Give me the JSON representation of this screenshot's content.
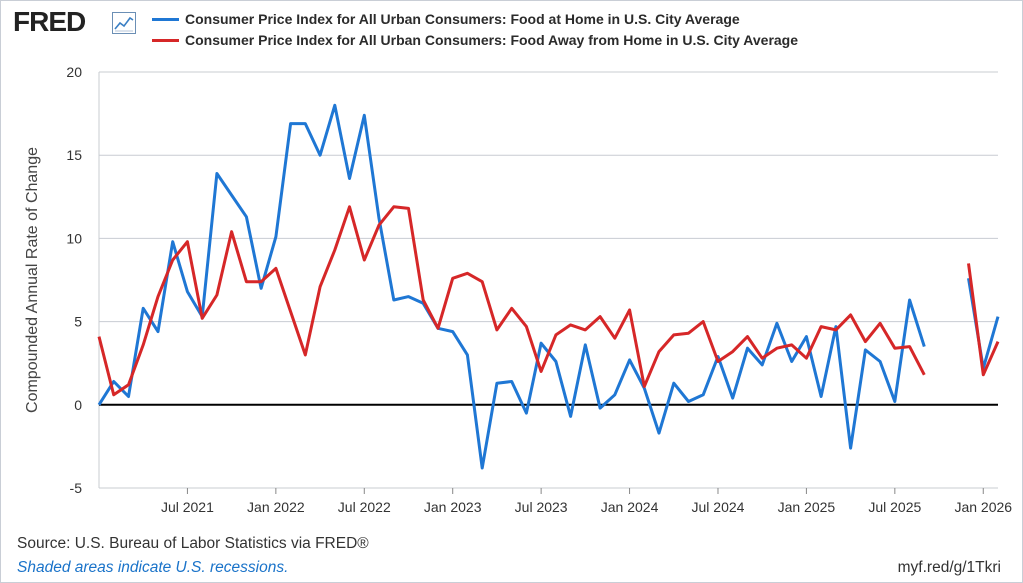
{
  "header": {
    "logo_text": "FRED",
    "logo_icon": "trend-line-icon"
  },
  "colors": {
    "series1": "#1f77d4",
    "series2": "#d62728",
    "zero_line": "#000000",
    "grid": "#c8ccd2"
  },
  "footer": {
    "source": "Source: U.S. Bureau of Labor Statistics via FRED®",
    "recession_note": "Shaded areas indicate U.S. recessions.",
    "short_url": "myf.red/g/1Tkri"
  },
  "chart_data": {
    "type": "line",
    "ylabel": "Compounded Annual Rate of Change",
    "ylim": [
      -5,
      20
    ],
    "yticks": [
      -5,
      0,
      5,
      10,
      15,
      20
    ],
    "grid": true,
    "legend_position": "top",
    "x_start": "2021-01",
    "x_end": "2026-02",
    "xticks": [
      {
        "date": "2021-07",
        "label": "Jul 2021"
      },
      {
        "date": "2022-01",
        "label": "Jan 2022"
      },
      {
        "date": "2022-07",
        "label": "Jul 2022"
      },
      {
        "date": "2023-01",
        "label": "Jan 2023"
      },
      {
        "date": "2023-07",
        "label": "Jul 2023"
      },
      {
        "date": "2024-01",
        "label": "Jan 2024"
      },
      {
        "date": "2024-07",
        "label": "Jul 2024"
      },
      {
        "date": "2025-01",
        "label": "Jan 2025"
      },
      {
        "date": "2025-07",
        "label": "Jul 2025"
      },
      {
        "date": "2026-01",
        "label": "Jan 2026"
      }
    ],
    "series": [
      {
        "name": "Consumer Price Index for All Urban Consumers: Food at Home in U.S. City Average",
        "color": "#1f77d4",
        "points": [
          [
            "2021-01",
            0.0
          ],
          [
            "2021-02",
            1.4
          ],
          [
            "2021-03",
            0.5
          ],
          [
            "2021-04",
            5.8
          ],
          [
            "2021-05",
            4.4
          ],
          [
            "2021-06",
            9.8
          ],
          [
            "2021-07",
            6.8
          ],
          [
            "2021-08",
            5.3
          ],
          [
            "2021-09",
            13.9
          ],
          [
            "2021-10",
            12.6
          ],
          [
            "2021-11",
            11.3
          ],
          [
            "2021-12",
            7.0
          ],
          [
            "2022-01",
            10.1
          ],
          [
            "2022-02",
            16.9
          ],
          [
            "2022-03",
            16.9
          ],
          [
            "2022-04",
            15.0
          ],
          [
            "2022-05",
            18.0
          ],
          [
            "2022-06",
            13.6
          ],
          [
            "2022-07",
            17.4
          ],
          [
            "2022-08",
            11.2
          ],
          [
            "2022-09",
            6.3
          ],
          [
            "2022-10",
            6.5
          ],
          [
            "2022-11",
            6.1
          ],
          [
            "2022-12",
            4.6
          ],
          [
            "2023-01",
            4.4
          ],
          [
            "2023-02",
            3.0
          ],
          [
            "2023-03",
            -3.8
          ],
          [
            "2023-04",
            1.3
          ],
          [
            "2023-05",
            1.4
          ],
          [
            "2023-06",
            -0.5
          ],
          [
            "2023-07",
            3.7
          ],
          [
            "2023-08",
            2.6
          ],
          [
            "2023-09",
            -0.7
          ],
          [
            "2023-10",
            3.6
          ],
          [
            "2023-11",
            -0.2
          ],
          [
            "2023-12",
            0.6
          ],
          [
            "2024-01",
            2.7
          ],
          [
            "2024-02",
            1.0
          ],
          [
            "2024-03",
            -1.7
          ],
          [
            "2024-04",
            1.3
          ],
          [
            "2024-05",
            0.2
          ],
          [
            "2024-06",
            0.6
          ],
          [
            "2024-07",
            2.9
          ],
          [
            "2024-08",
            0.4
          ],
          [
            "2024-09",
            3.4
          ],
          [
            "2024-10",
            2.4
          ],
          [
            "2024-11",
            4.9
          ],
          [
            "2024-12",
            2.6
          ],
          [
            "2025-01",
            4.1
          ],
          [
            "2025-02",
            0.5
          ],
          [
            "2025-03",
            4.7
          ],
          [
            "2025-04",
            -2.6
          ],
          [
            "2025-05",
            3.3
          ],
          [
            "2025-06",
            2.6
          ],
          [
            "2025-07",
            0.2
          ],
          [
            "2025-08",
            6.3
          ],
          [
            "2025-09",
            3.5
          ],
          [
            "2025-10",
            null
          ],
          [
            "2025-11",
            null
          ],
          [
            "2025-12",
            7.6
          ],
          [
            "2026-01",
            2.2
          ],
          [
            "2026-02",
            5.3
          ]
        ]
      },
      {
        "name": "Consumer Price Index for All Urban Consumers: Food Away from Home in U.S. City Average",
        "color": "#d62728",
        "points": [
          [
            "2021-01",
            4.1
          ],
          [
            "2021-02",
            0.6
          ],
          [
            "2021-03",
            1.2
          ],
          [
            "2021-04",
            3.6
          ],
          [
            "2021-05",
            6.5
          ],
          [
            "2021-06",
            8.7
          ],
          [
            "2021-07",
            9.8
          ],
          [
            "2021-08",
            5.2
          ],
          [
            "2021-09",
            6.6
          ],
          [
            "2021-10",
            10.4
          ],
          [
            "2021-11",
            7.4
          ],
          [
            "2021-12",
            7.4
          ],
          [
            "2022-01",
            8.2
          ],
          [
            "2022-02",
            5.6
          ],
          [
            "2022-03",
            3.0
          ],
          [
            "2022-04",
            7.1
          ],
          [
            "2022-05",
            9.3
          ],
          [
            "2022-06",
            11.9
          ],
          [
            "2022-07",
            8.7
          ],
          [
            "2022-08",
            10.8
          ],
          [
            "2022-09",
            11.9
          ],
          [
            "2022-10",
            11.8
          ],
          [
            "2022-11",
            6.3
          ],
          [
            "2022-12",
            4.6
          ],
          [
            "2023-01",
            7.6
          ],
          [
            "2023-02",
            7.9
          ],
          [
            "2023-03",
            7.4
          ],
          [
            "2023-04",
            4.5
          ],
          [
            "2023-05",
            5.8
          ],
          [
            "2023-06",
            4.7
          ],
          [
            "2023-07",
            2.0
          ],
          [
            "2023-08",
            4.2
          ],
          [
            "2023-09",
            4.8
          ],
          [
            "2023-10",
            4.5
          ],
          [
            "2023-11",
            5.3
          ],
          [
            "2023-12",
            4.0
          ],
          [
            "2024-01",
            5.7
          ],
          [
            "2024-02",
            1.1
          ],
          [
            "2024-03",
            3.2
          ],
          [
            "2024-04",
            4.2
          ],
          [
            "2024-05",
            4.3
          ],
          [
            "2024-06",
            5.0
          ],
          [
            "2024-07",
            2.6
          ],
          [
            "2024-08",
            3.2
          ],
          [
            "2024-09",
            4.1
          ],
          [
            "2024-10",
            2.8
          ],
          [
            "2024-11",
            3.4
          ],
          [
            "2024-12",
            3.6
          ],
          [
            "2025-01",
            2.8
          ],
          [
            "2025-02",
            4.7
          ],
          [
            "2025-03",
            4.5
          ],
          [
            "2025-04",
            5.4
          ],
          [
            "2025-05",
            3.8
          ],
          [
            "2025-06",
            4.9
          ],
          [
            "2025-07",
            3.4
          ],
          [
            "2025-08",
            3.5
          ],
          [
            "2025-09",
            1.8
          ],
          [
            "2025-10",
            null
          ],
          [
            "2025-11",
            null
          ],
          [
            "2025-12",
            8.5
          ],
          [
            "2026-01",
            1.8
          ],
          [
            "2026-02",
            3.8
          ]
        ]
      }
    ]
  }
}
